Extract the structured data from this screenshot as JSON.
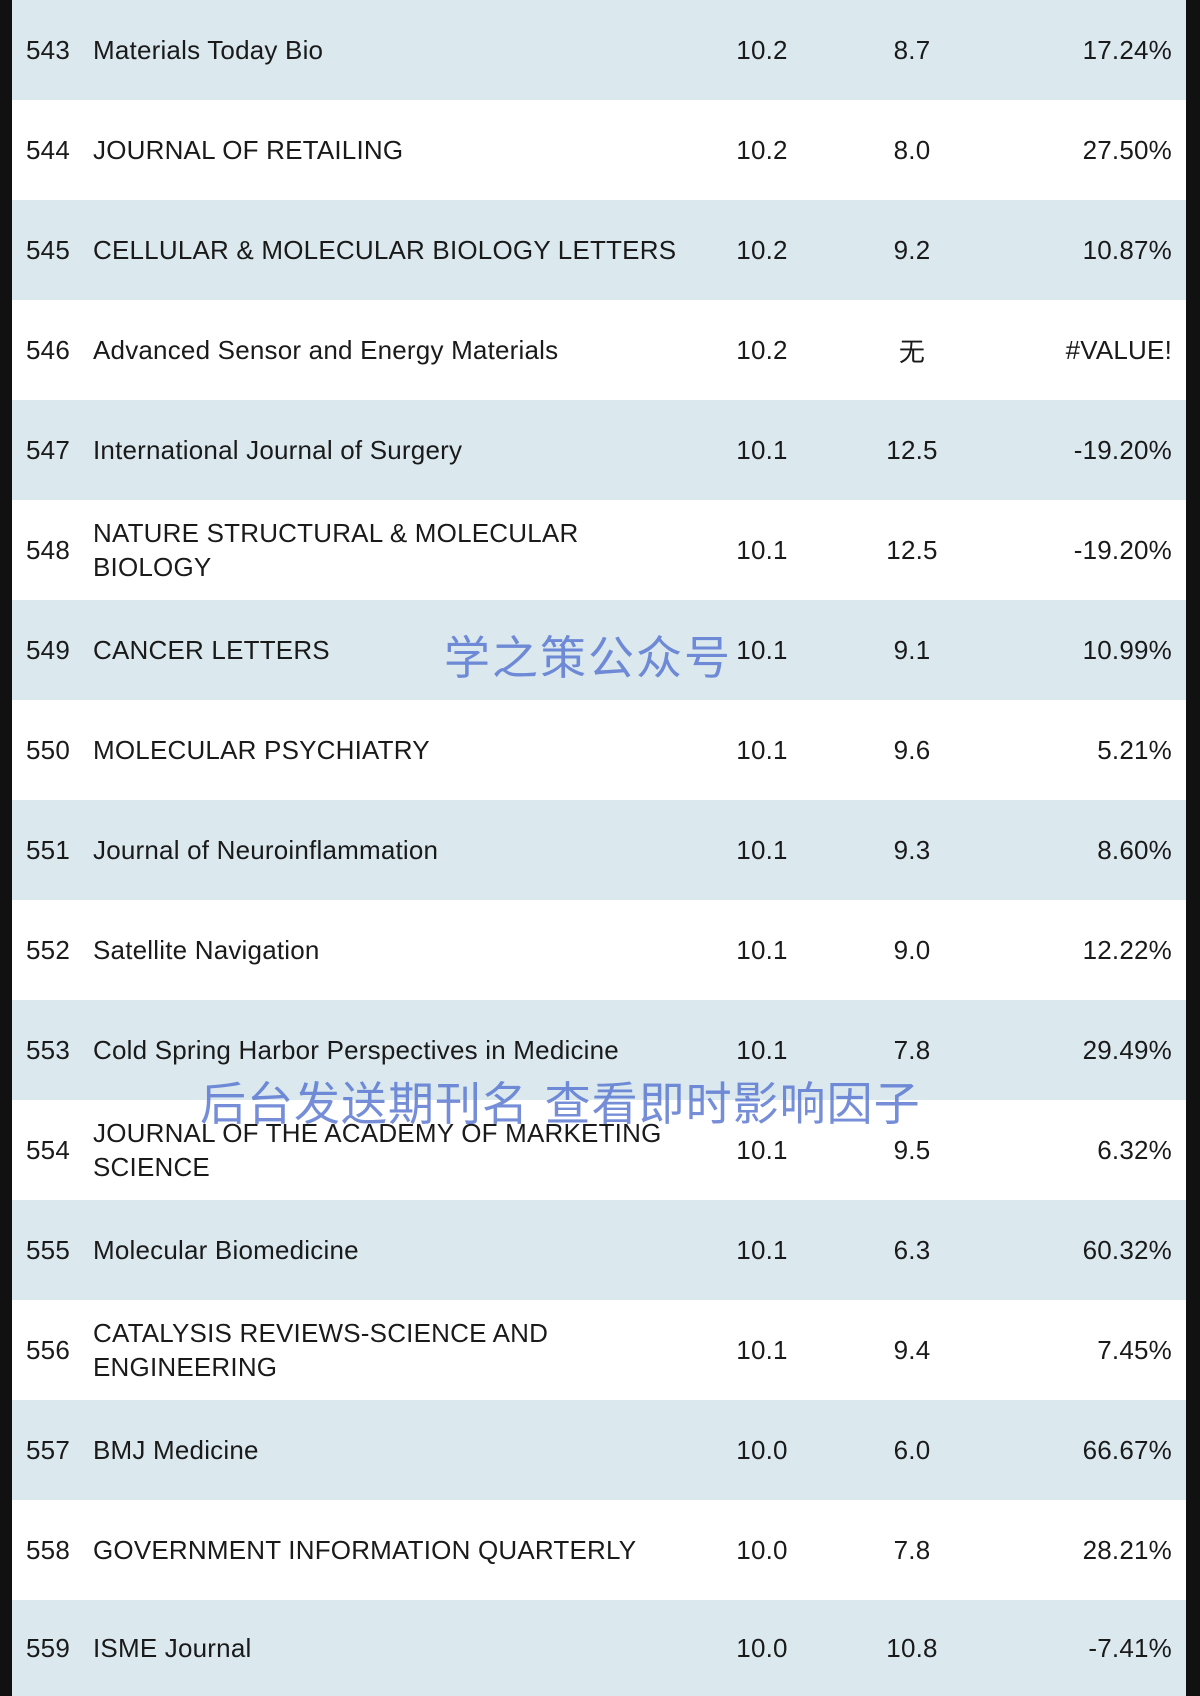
{
  "rows": [
    {
      "rank": "543",
      "name": "Materials Today Bio",
      "jif": "10.2",
      "prev": "8.7",
      "growth": "17.24%"
    },
    {
      "rank": "544",
      "name": "JOURNAL OF RETAILING",
      "jif": "10.2",
      "prev": "8.0",
      "growth": "27.50%"
    },
    {
      "rank": "545",
      "name": "CELLULAR & MOLECULAR BIOLOGY LETTERS",
      "jif": "10.2",
      "prev": "9.2",
      "growth": "10.87%"
    },
    {
      "rank": "546",
      "name": "Advanced Sensor and Energy Materials",
      "jif": "10.2",
      "prev": "无",
      "growth": "#VALUE!"
    },
    {
      "rank": "547",
      "name": "International Journal of Surgery",
      "jif": "10.1",
      "prev": "12.5",
      "growth": "-19.20%"
    },
    {
      "rank": "548",
      "name": "NATURE STRUCTURAL & MOLECULAR BIOLOGY",
      "jif": "10.1",
      "prev": "12.5",
      "growth": "-19.20%"
    },
    {
      "rank": "549",
      "name": "CANCER LETTERS",
      "jif": "10.1",
      "prev": "9.1",
      "growth": "10.99%"
    },
    {
      "rank": "550",
      "name": "MOLECULAR PSYCHIATRY",
      "jif": "10.1",
      "prev": "9.6",
      "growth": "5.21%"
    },
    {
      "rank": "551",
      "name": "Journal of Neuroinflammation",
      "jif": "10.1",
      "prev": "9.3",
      "growth": "8.60%"
    },
    {
      "rank": "552",
      "name": "Satellite Navigation",
      "jif": "10.1",
      "prev": "9.0",
      "growth": "12.22%"
    },
    {
      "rank": "553",
      "name": "Cold Spring Harbor Perspectives in Medicine",
      "jif": "10.1",
      "prev": "7.8",
      "growth": "29.49%"
    },
    {
      "rank": "554",
      "name": "JOURNAL OF THE ACADEMY OF MARKETING SCIENCE",
      "jif": "10.1",
      "prev": "9.5",
      "growth": "6.32%"
    },
    {
      "rank": "555",
      "name": "Molecular Biomedicine",
      "jif": "10.1",
      "prev": "6.3",
      "growth": "60.32%"
    },
    {
      "rank": "556",
      "name": "CATALYSIS REVIEWS-SCIENCE AND ENGINEERING",
      "jif": "10.1",
      "prev": "9.4",
      "growth": "7.45%"
    },
    {
      "rank": "557",
      "name": "BMJ Medicine",
      "jif": "10.0",
      "prev": "6.0",
      "growth": "66.67%"
    },
    {
      "rank": "558",
      "name": "GOVERNMENT INFORMATION QUARTERLY",
      "jif": "10.0",
      "prev": "7.8",
      "growth": "28.21%"
    },
    {
      "rank": "559",
      "name": "ISME Journal",
      "jif": "10.0",
      "prev": "10.8",
      "growth": "-7.41%"
    }
  ],
  "watermarks": {
    "account": "学之策公众号",
    "prompt": "后台发送期刊名 查看即时影响因子"
  },
  "colors": {
    "row_shaded": "#dbe9ef",
    "row_plain": "#ffffff",
    "border": "#111111",
    "watermark": "#506ecd"
  }
}
